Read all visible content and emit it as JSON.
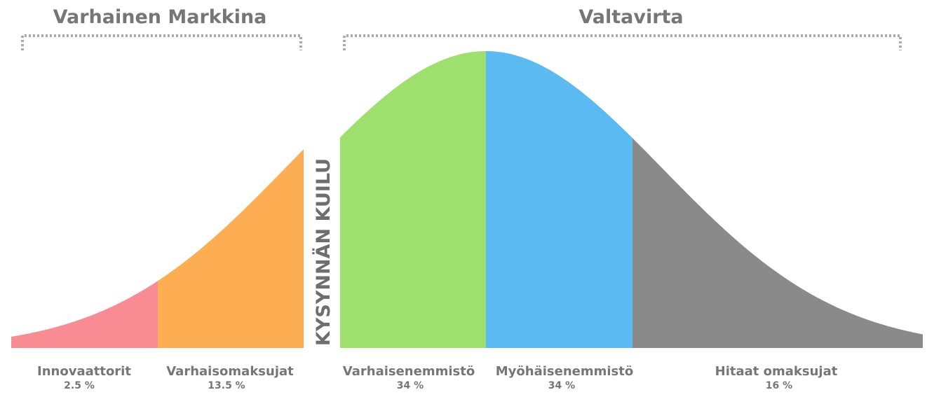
{
  "headers": [
    "Varhainen Markkina",
    "Valtavirta"
  ],
  "chasm_label": "KYSYNNÄN KUILU",
  "segments": [
    {
      "name": "Innovaattorit",
      "share": "2.5 %"
    },
    {
      "name": "Varhaisomaksujat",
      "share": "13.5 %"
    },
    {
      "name": "Varhaisenemmistö",
      "share": "34 %"
    },
    {
      "name": "Myöhäisenemmistö",
      "share": "34 %"
    },
    {
      "name": "Hitaat omaksujat",
      "share": "16 %"
    }
  ]
}
